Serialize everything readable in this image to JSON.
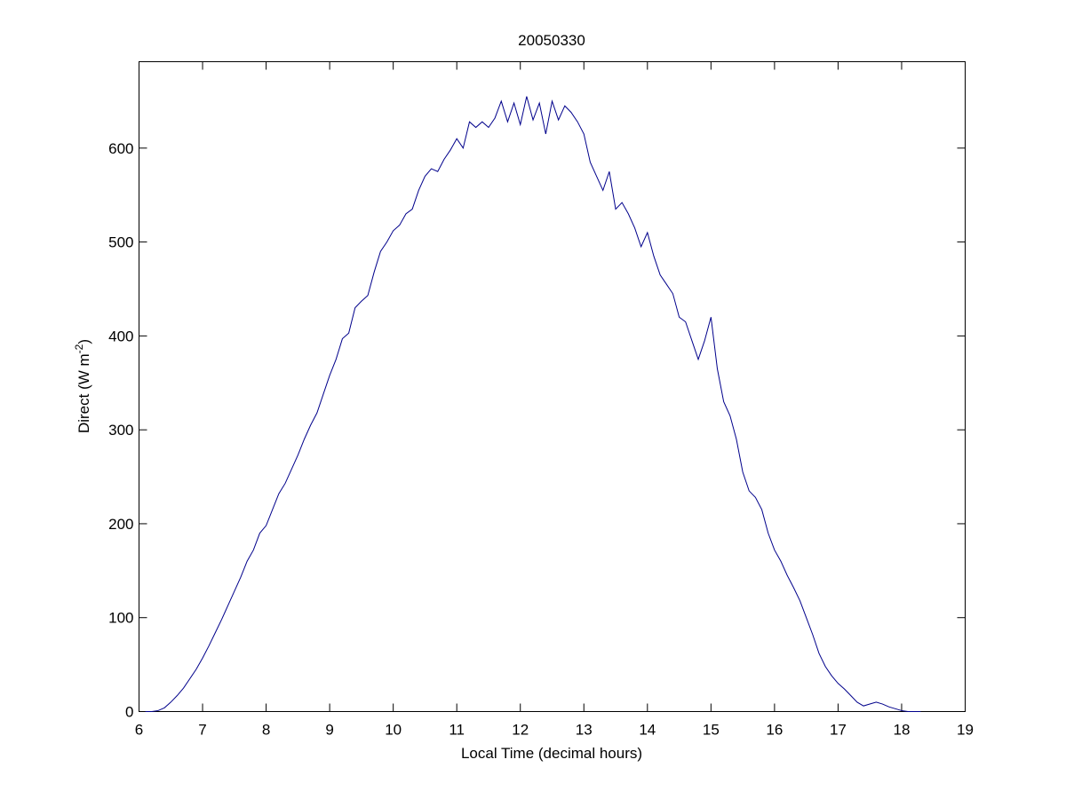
{
  "chart_data": {
    "type": "line",
    "title": "20050330",
    "xlabel": "Local Time (decimal hours)",
    "ylabel": {
      "text": "Direct (W m",
      "superscript": "-2",
      "end": ")"
    },
    "xlim": [
      6,
      19
    ],
    "xticks": [
      6,
      7,
      8,
      9,
      10,
      11,
      12,
      13,
      14,
      15,
      16,
      17,
      18,
      19
    ],
    "ylim": [
      0,
      692
    ],
    "yticks": [
      0,
      100,
      200,
      300,
      400,
      500,
      600
    ],
    "grid": false,
    "series": [
      {
        "name": "Direct",
        "color": "#00008b",
        "x": [
          6.1,
          6.2,
          6.3,
          6.4,
          6.5,
          6.6,
          6.7,
          6.8,
          6.9,
          7.0,
          7.1,
          7.2,
          7.3,
          7.4,
          7.5,
          7.6,
          7.7,
          7.8,
          7.9,
          8.0,
          8.1,
          8.2,
          8.3,
          8.4,
          8.5,
          8.6,
          8.7,
          8.8,
          8.9,
          9.0,
          9.1,
          9.2,
          9.3,
          9.4,
          9.5,
          9.6,
          9.7,
          9.8,
          9.9,
          10.0,
          10.1,
          10.2,
          10.3,
          10.4,
          10.5,
          10.6,
          10.7,
          10.8,
          10.9,
          11.0,
          11.1,
          11.2,
          11.3,
          11.4,
          11.5,
          11.6,
          11.7,
          11.8,
          11.9,
          12.0,
          12.1,
          12.2,
          12.3,
          12.4,
          12.5,
          12.6,
          12.7,
          12.8,
          12.9,
          13.0,
          13.1,
          13.2,
          13.3,
          13.4,
          13.5,
          13.6,
          13.7,
          13.8,
          13.9,
          14.0,
          14.1,
          14.2,
          14.3,
          14.4,
          14.5,
          14.6,
          14.7,
          14.8,
          14.9,
          15.0,
          15.1,
          15.2,
          15.3,
          15.4,
          15.5,
          15.6,
          15.7,
          15.8,
          15.9,
          16.0,
          16.1,
          16.2,
          16.3,
          16.4,
          16.5,
          16.6,
          16.7,
          16.8,
          16.9,
          17.0,
          17.1,
          17.2,
          17.3,
          17.4,
          17.5,
          17.6,
          17.7,
          17.8,
          17.9,
          18.0,
          18.1,
          18.2,
          18.3
        ],
        "values": [
          0,
          0,
          1,
          4,
          10,
          17,
          25,
          35,
          45,
          57,
          70,
          84,
          98,
          113,
          128,
          143,
          160,
          172,
          190,
          198,
          215,
          232,
          243,
          258,
          273,
          290,
          305,
          318,
          338,
          358,
          375,
          397,
          403,
          430,
          437,
          443,
          468,
          490,
          500,
          512,
          518,
          530,
          535,
          555,
          570,
          578,
          575,
          588,
          598,
          610,
          600,
          628,
          622,
          628,
          622,
          632,
          650,
          628,
          648,
          625,
          655,
          630,
          648,
          615,
          650,
          630,
          645,
          638,
          628,
          615,
          585,
          570,
          555,
          575,
          535,
          542,
          530,
          515,
          495,
          510,
          485,
          465,
          455,
          445,
          420,
          415,
          395,
          375,
          395,
          420,
          365,
          330,
          315,
          290,
          255,
          235,
          228,
          215,
          190,
          172,
          160,
          145,
          132,
          118,
          100,
          82,
          62,
          48,
          38,
          30,
          24,
          17,
          10,
          6,
          8,
          10,
          8,
          5,
          3,
          1,
          0,
          0,
          0
        ]
      }
    ]
  }
}
